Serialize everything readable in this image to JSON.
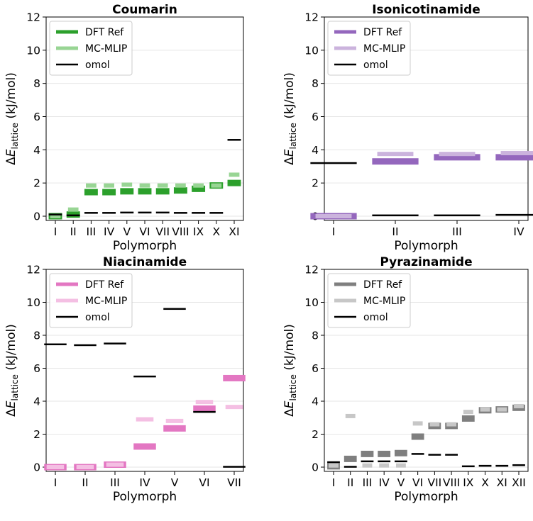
{
  "chart_data": [
    {
      "type": "bar",
      "title": "Coumarin",
      "xlabel": "Polymorph",
      "ylabel": "ΔE_lattice (kJ/mol)",
      "ylim": [
        0,
        12
      ],
      "yticks": [
        0,
        2,
        4,
        6,
        8,
        10,
        12
      ],
      "grid": "y",
      "legend_position": "top-left",
      "categories": [
        "I",
        "II",
        "III",
        "IV",
        "V",
        "VI",
        "VII",
        "VIII",
        "IX",
        "X",
        "XI"
      ],
      "series": [
        {
          "name": "DFT Ref",
          "color": "#2ca02c",
          "values": [
            0.0,
            0.1,
            1.45,
            1.45,
            1.5,
            1.5,
            1.5,
            1.55,
            1.65,
            1.85,
            2.0
          ]
        },
        {
          "name": "MC-MLIP",
          "color": "#98d594",
          "values": [
            0.0,
            0.4,
            1.85,
            1.85,
            1.9,
            1.85,
            1.85,
            1.85,
            1.85,
            1.85,
            2.5
          ]
        },
        {
          "name": "omol",
          "color": "#000000",
          "values": [
            0.1,
            0.05,
            0.2,
            0.2,
            0.22,
            0.22,
            0.22,
            0.2,
            0.2,
            0.2,
            4.6
          ]
        }
      ]
    },
    {
      "type": "bar",
      "title": "Isonicotinamide",
      "xlabel": "Polymorph",
      "ylabel": "ΔE_lattice (kJ/mol)",
      "ylim": [
        0,
        12
      ],
      "yticks": [
        0,
        2,
        4,
        6,
        8,
        10,
        12
      ],
      "grid": "y",
      "legend_position": "top-left",
      "categories": [
        "I",
        "II",
        "III",
        "IV"
      ],
      "series": [
        {
          "name": "DFT Ref",
          "color": "#9467bd",
          "values": [
            0.0,
            3.3,
            3.55,
            3.55
          ]
        },
        {
          "name": "MC-MLIP",
          "color": "#cbb3dd",
          "values": [
            0.0,
            3.75,
            3.75,
            3.8
          ]
        },
        {
          "name": "omol",
          "color": "#000000",
          "values": [
            3.2,
            0.05,
            0.05,
            0.08
          ]
        }
      ]
    },
    {
      "type": "bar",
      "title": "Niacinamide",
      "xlabel": "Polymorph",
      "ylabel": "ΔE_lattice (kJ/mol)",
      "ylim": [
        0,
        12
      ],
      "yticks": [
        0,
        2,
        4,
        6,
        8,
        10,
        12
      ],
      "grid": "y",
      "legend_position": "top-left",
      "categories": [
        "I",
        "II",
        "III",
        "IV",
        "V",
        "VI",
        "VII"
      ],
      "series": [
        {
          "name": "DFT Ref",
          "color": "#e377c2",
          "values": [
            0.0,
            0.0,
            0.15,
            1.25,
            2.35,
            3.55,
            5.4
          ]
        },
        {
          "name": "MC-MLIP",
          "color": "#f4bfe3",
          "values": [
            0.0,
            0.0,
            0.15,
            2.9,
            2.8,
            3.95,
            3.65
          ]
        },
        {
          "name": "omol",
          "color": "#000000",
          "values": [
            7.45,
            7.4,
            7.5,
            5.5,
            9.6,
            3.35,
            0.02
          ]
        }
      ]
    },
    {
      "type": "bar",
      "title": "Pyrazinamide",
      "xlabel": "Polymorph",
      "ylabel": "ΔE_lattice (kJ/mol)",
      "ylim": [
        0,
        12
      ],
      "yticks": [
        0,
        2,
        4,
        6,
        8,
        10,
        12
      ],
      "grid": "y",
      "legend_position": "top-left",
      "categories": [
        "I",
        "II",
        "III",
        "IV",
        "V",
        "VI",
        "VII",
        "VIII",
        "IX",
        "X",
        "XI",
        "XII"
      ],
      "series": [
        {
          "name": "DFT Ref",
          "color": "#7f7f7f",
          "values": [
            0.05,
            0.5,
            0.8,
            0.8,
            0.85,
            1.85,
            2.5,
            2.5,
            2.95,
            3.45,
            3.5,
            3.6
          ]
        },
        {
          "name": "MC-MLIP",
          "color": "#c7c7c7",
          "values": [
            0.1,
            3.1,
            0.1,
            0.1,
            0.1,
            2.65,
            2.6,
            2.6,
            3.35,
            3.5,
            3.5,
            3.7
          ]
        },
        {
          "name": "omol",
          "color": "#000000",
          "values": [
            0.3,
            0.02,
            0.35,
            0.35,
            0.35,
            0.8,
            0.75,
            0.75,
            0.05,
            0.08,
            0.08,
            0.12
          ]
        }
      ]
    }
  ]
}
